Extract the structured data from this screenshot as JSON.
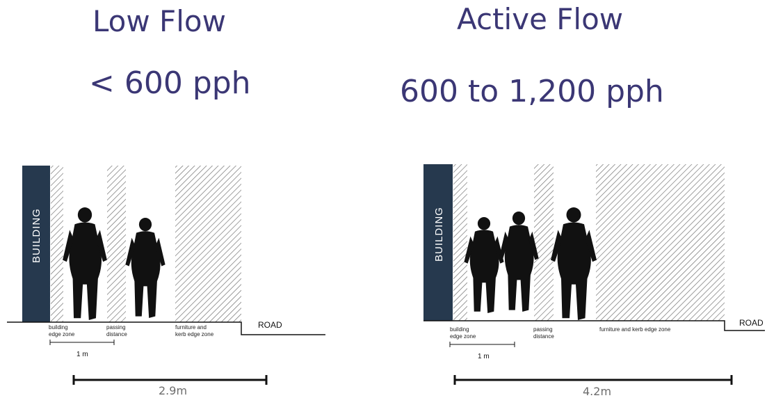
{
  "left": {
    "title": "Low Flow",
    "subtitle": "< 600 pph",
    "building": "BUILDING",
    "labels": {
      "edge1": "building",
      "edge2": "edge zone",
      "pass1": "passing",
      "pass2": "distance",
      "furn1": "furniture and",
      "furn2": "kerb edge zone"
    },
    "road": "ROAD",
    "unit": "1 m",
    "width": "2.9m"
  },
  "right": {
    "title": "Active Flow",
    "subtitle": "600 to 1,200 pph",
    "building": "BUILDING",
    "labels": {
      "edge1": "building",
      "edge2": "edge zone",
      "pass1": "passing",
      "pass2": "distance",
      "furn": "furniture and kerb edge zone"
    },
    "road": "ROAD",
    "unit": "1 m",
    "width": "4.2m"
  },
  "colors": {
    "title": "#3b3775",
    "building": "#26394e",
    "silhouette": "#111111"
  },
  "icons": [
    "pedestrian-silhouette-icon"
  ]
}
